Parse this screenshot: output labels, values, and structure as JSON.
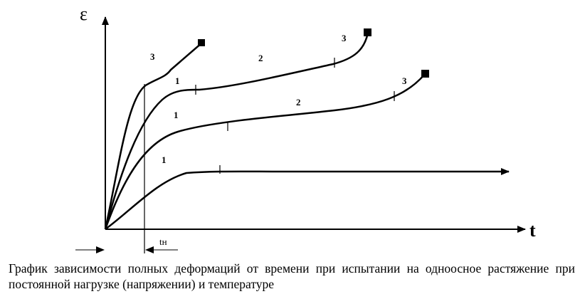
{
  "chart_data": {
    "type": "line",
    "title": "",
    "xlabel": "t",
    "ylabel": "ε",
    "tn_label": "tн",
    "stage_names": [
      "1",
      "2",
      "3"
    ],
    "series": [
      {
        "stages": [
          {
            "label": "1",
            "x": 2.3,
            "y": 3.6
          },
          {
            "label": "2",
            "x": 6.9,
            "y": 10.1
          },
          {
            "label": "3",
            "x": 9.4,
            "y": 10.8
          }
        ],
        "stage_ticks": [
          {
            "x": 4.7,
            "y": 8.1
          },
          {
            "x": 9.0,
            "y": 9.6
          }
        ],
        "rupture": true
      },
      {
        "stages": [
          {
            "label": "1",
            "x": 1.8,
            "y": 6.4
          },
          {
            "label": "2",
            "x": 5.4,
            "y": 9.7
          }
        ],
        "stage_ticks": [
          {
            "x": 4.1,
            "y": 7.8
          }
        ],
        "rupture": false
      },
      {
        "stages": [
          {
            "label": "1",
            "x": 1.8,
            "y": 8.9
          },
          {
            "label": "2",
            "x": 5.4,
            "y": 7.4
          },
          {
            "label": "3",
            "x": 7.9,
            "y": 8.3
          }
        ],
        "stage_ticks": [
          {
            "x": 3.9,
            "y": 6.2
          },
          {
            "x": 7.6,
            "y": 7.7
          }
        ],
        "rupture": true
      },
      {
        "stages": [
          {
            "label": "1",
            "x": 1.8,
            "y": 3.7
          }
        ],
        "stage_ticks": [
          {
            "x": 3.3,
            "y": 3.2
          }
        ],
        "continues": true
      }
    ]
  },
  "caption": "График зависимости полных деформаций от времени при испытании на одноосное растяжение при постоянной нагрузке (напряжении) и температуре"
}
